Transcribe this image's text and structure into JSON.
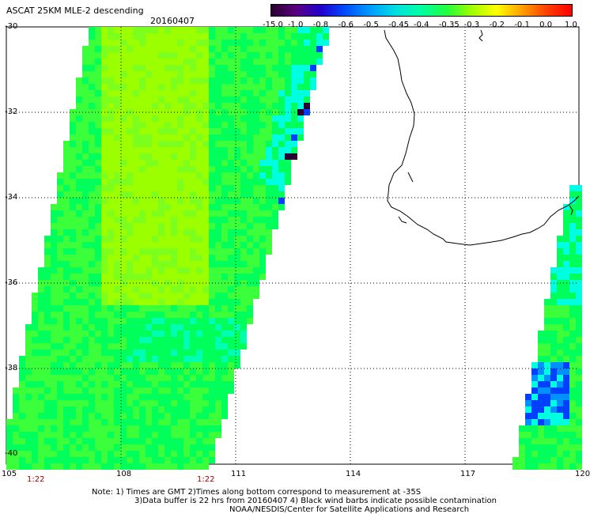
{
  "header": {
    "title": "ASCAT 25KM MLE-2 descending",
    "date": "20160407"
  },
  "colorbar": {
    "labels": [
      "-15.0",
      "-1.0",
      "-0.8",
      "-0.6",
      "-0.5",
      "-0.45",
      "-0.4",
      "-0.35",
      "-0.3",
      "-0.2",
      "-0.1",
      "0.0",
      "1.0"
    ],
    "colors": [
      "#2a0030",
      "#5a0080",
      "#2000d0",
      "#0050ff",
      "#00a0ff",
      "#00e0e0",
      "#00ffa0",
      "#20ff40",
      "#a0ff00",
      "#ffff00",
      "#ffa000",
      "#ff4000",
      "#ff0000"
    ]
  },
  "axes": {
    "lat_labels": [
      "-30",
      "-32",
      "-34",
      "-36",
      "-38",
      "-40"
    ],
    "lon_labels": [
      "105",
      "108",
      "111",
      "114",
      "117",
      "120"
    ]
  },
  "times": [
    "1:22",
    "1:22"
  ],
  "notes": {
    "line1": "Note: 1) Times are GMT 2)Times along bottom correspond to measurement at -35S",
    "line2": "3)Data buffer is 22 hrs from 20160407 4) Black wind barbs indicate possible contamination",
    "line3": "NOAA/NESDIS/Center for Satellite Applications and Research"
  },
  "palette": {
    "lime": "#9cff00",
    "green": "#3cff3c",
    "bright_green": "#00ff5a",
    "cyan": "#00ffe0",
    "blue": "#0040ff",
    "dark_purple": "#2a0030"
  }
}
